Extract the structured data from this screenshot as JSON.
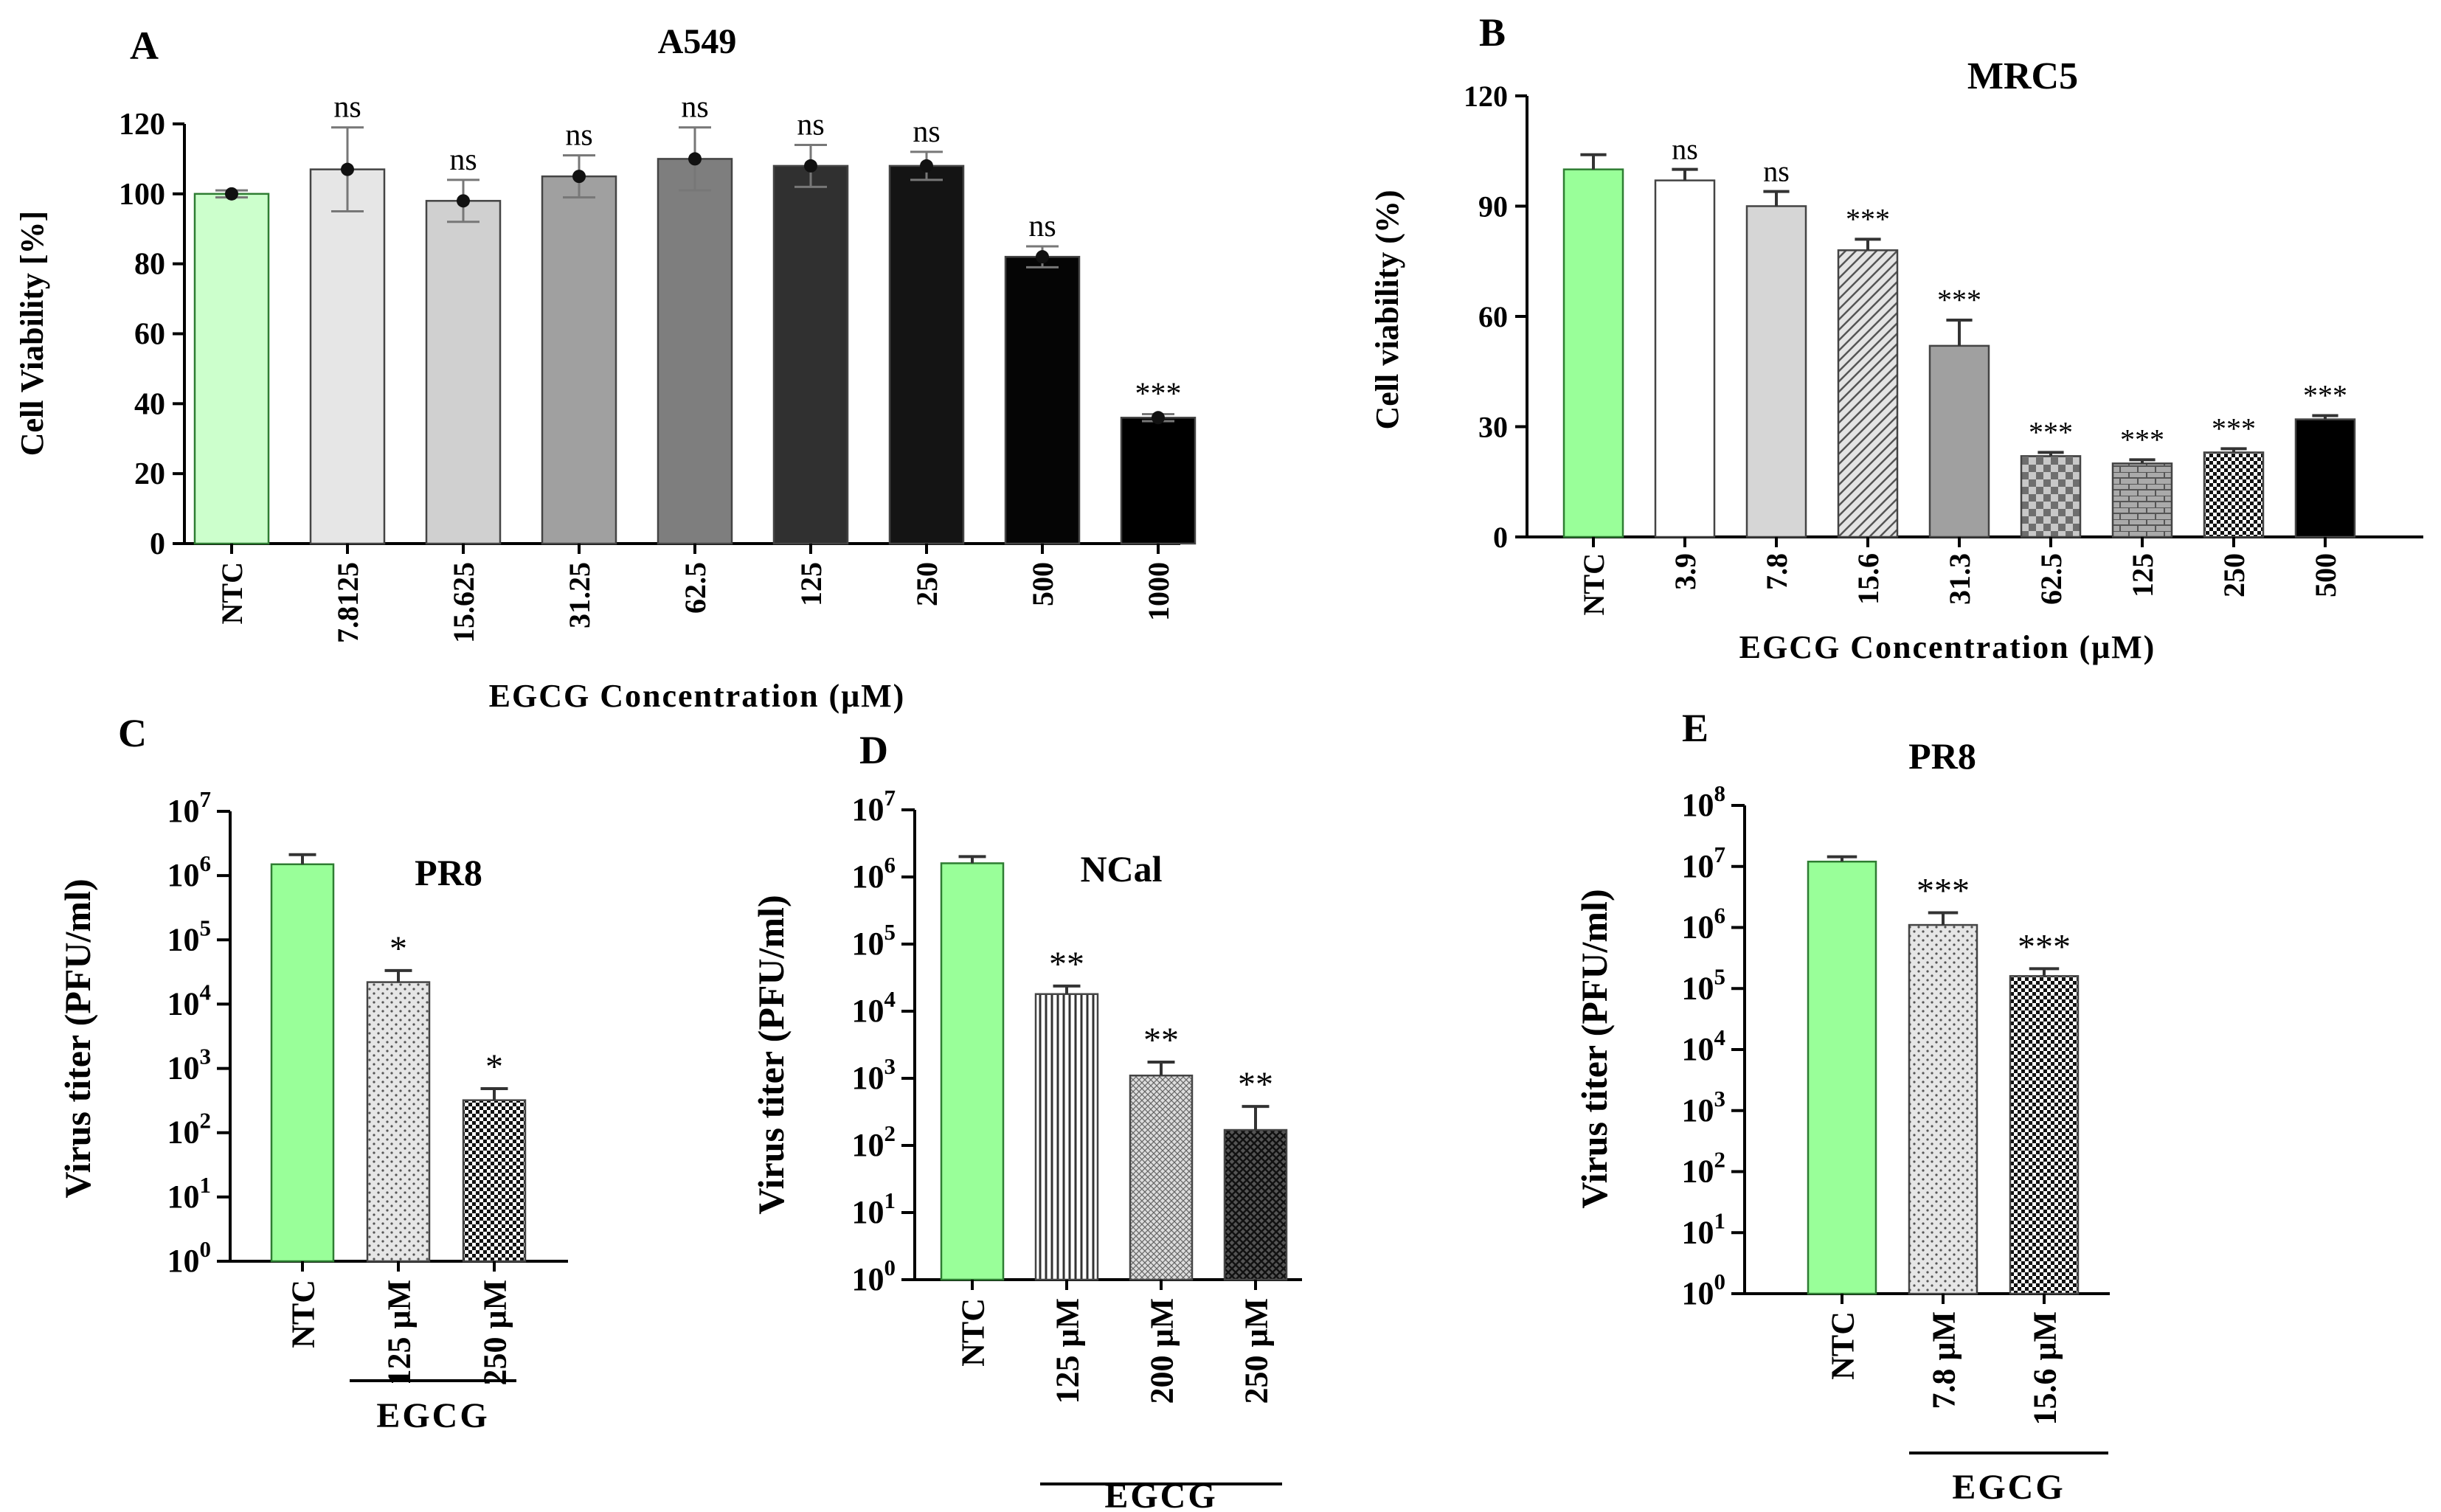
{
  "chart_data": [
    {
      "panel": "A",
      "type": "bar",
      "title": "A549",
      "xlabel": "EGCG Concentration (μM)",
      "ylabel": "Cell Viability [%]",
      "ylim": [
        0,
        120
      ],
      "yticks": [
        "0",
        "20",
        "40",
        "60",
        "80",
        "100",
        "120"
      ],
      "categories": [
        "NTC",
        "7.8125",
        "15.625",
        "31.25",
        "62.5",
        "125",
        "250",
        "500",
        "1000"
      ],
      "values": [
        100,
        107,
        98,
        105,
        110,
        108,
        108,
        82,
        36
      ],
      "errors": [
        1,
        12,
        6,
        6,
        9,
        6,
        4,
        3,
        1
      ],
      "significance": [
        "",
        "ns",
        "ns",
        "ns",
        "ns",
        "ns",
        "ns",
        "ns",
        "***"
      ],
      "colors": [
        "#ccffcc",
        "#e6e6e6",
        "#d0d0d0",
        "#a0a0a0",
        "#7e7e7e",
        "#303030",
        "#141414",
        "#050505",
        "#000000"
      ]
    },
    {
      "panel": "B",
      "type": "bar",
      "title": "MRC5",
      "xlabel": "EGCG Concentration (μM)",
      "ylabel": "Cell viability (%)",
      "ylim": [
        0,
        120
      ],
      "yticks": [
        "0",
        "30",
        "60",
        "90",
        "120"
      ],
      "categories": [
        "NTC",
        "3.9",
        "7.8",
        "15.6",
        "31.3",
        "62.5",
        "125",
        "250",
        "500"
      ],
      "values": [
        100,
        97,
        90,
        78,
        52,
        22,
        20,
        23,
        32
      ],
      "errors": [
        4,
        3,
        4,
        3,
        7,
        1,
        1,
        1,
        1
      ],
      "significance": [
        "",
        "ns",
        "ns",
        "***",
        "***",
        "***",
        "***",
        "***",
        "***"
      ],
      "colors": [
        "#99ff99",
        "#ffffff",
        "#d6d6d6",
        "#e0e0e0",
        "#a0a0a0",
        "#b0b0b0",
        "#9a9a9a",
        "#aaaaaa",
        "#000000"
      ]
    },
    {
      "panel": "C",
      "type": "bar",
      "title": "PR8",
      "ylabel": "Virus titer (PFU/ml)",
      "yscale": "log",
      "ylim_log10": [
        0,
        7
      ],
      "categories": [
        "NTC",
        "125 μM",
        "250 μM"
      ],
      "values": [
        1500000,
        22000,
        320
      ],
      "errors_log10": [
        0.15,
        0.18,
        0.18
      ],
      "significance": [
        "",
        "*",
        "*"
      ],
      "group_label": "EGCG",
      "colors": [
        "#99ff99",
        "#e0e0e0",
        "#222222"
      ]
    },
    {
      "panel": "D",
      "type": "bar",
      "title": "NCal",
      "ylabel": "Virus titer (PFU/ml)",
      "yscale": "log",
      "ylim_log10": [
        0,
        7
      ],
      "categories": [
        "NTC",
        "125 μM",
        "200 μM",
        "250 μM"
      ],
      "values": [
        1600000,
        18000,
        1100,
        170
      ],
      "errors_log10": [
        0.1,
        0.12,
        0.2,
        0.35
      ],
      "significance": [
        "",
        "**",
        "**",
        "**"
      ],
      "group_label": "EGCG",
      "colors": [
        "#99ff99",
        "#cfcfcf",
        "#bbbbbb",
        "#555555"
      ]
    },
    {
      "panel": "E",
      "type": "bar",
      "title": "PR8",
      "ylabel": "Virus titer (PFU/ml)",
      "yscale": "log",
      "ylim_log10": [
        0,
        8
      ],
      "categories": [
        "NTC",
        "7.8 μM",
        "15.6 μM"
      ],
      "values": [
        12000000,
        1100000,
        160000
      ],
      "errors_log10": [
        0.08,
        0.2,
        0.12
      ],
      "significance": [
        "",
        "***",
        "***"
      ],
      "group_label": "EGCG",
      "colors": [
        "#99ff99",
        "#e0e0e0",
        "#333333"
      ]
    }
  ]
}
